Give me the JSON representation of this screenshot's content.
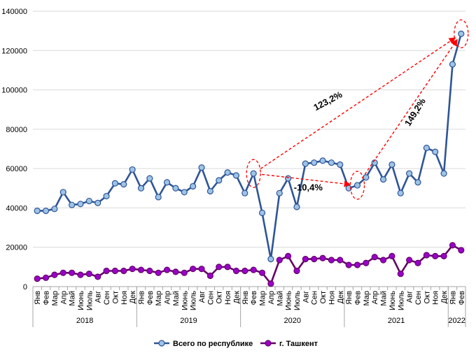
{
  "chart_data": {
    "type": "line",
    "months": [
      "Янв",
      "Фев",
      "Мар",
      "Апр",
      "Май",
      "Июнь",
      "Июль",
      "Авг",
      "Сен",
      "Окт",
      "Ноя",
      "Дек"
    ],
    "years": [
      {
        "label": "2018",
        "months": 12
      },
      {
        "label": "2019",
        "months": 12
      },
      {
        "label": "2020",
        "months": 12
      },
      {
        "label": "2021",
        "months": 12
      },
      {
        "label": "2022",
        "months": 2
      }
    ],
    "ylim": [
      0,
      140000
    ],
    "yticks": [
      0,
      20000,
      40000,
      60000,
      80000,
      100000,
      120000,
      140000
    ],
    "grid": true,
    "legend_position": "bottom",
    "series": [
      {
        "name": "Всего по республике",
        "color": "#2F5597",
        "marker_fill": "#9DC3E6",
        "values": [
          38500,
          38500,
          39500,
          48000,
          41500,
          42000,
          43500,
          42500,
          46000,
          52500,
          52000,
          59500,
          50000,
          55000,
          45500,
          53000,
          50000,
          48000,
          51000,
          60500,
          48500,
          54000,
          58000,
          56500,
          47500,
          57500,
          37500,
          14000,
          47500,
          55000,
          40500,
          62500,
          63000,
          64000,
          63000,
          62000,
          50000,
          51500,
          55500,
          63000,
          54500,
          62000,
          47500,
          57500,
          53000,
          70500,
          68500,
          57500,
          113000,
          128500
        ]
      },
      {
        "name": "г. Ташкент",
        "color": "#660066",
        "marker_fill": "#9900CC",
        "values": [
          4000,
          4500,
          6000,
          7000,
          7000,
          6000,
          6500,
          5000,
          8000,
          8000,
          8000,
          9000,
          8500,
          8000,
          7000,
          8500,
          7500,
          7000,
          9000,
          9000,
          5500,
          10000,
          10000,
          8000,
          8000,
          8500,
          7000,
          1500,
          13500,
          15500,
          8000,
          14000,
          14000,
          14500,
          13500,
          13500,
          11000,
          11000,
          12000,
          15000,
          13500,
          15500,
          6500,
          13500,
          12000,
          16000,
          15500,
          15500,
          21000,
          18500
        ]
      }
    ],
    "annotations": [
      {
        "text": "123,2%",
        "from_index": 25,
        "to_index": 49
      },
      {
        "text": "149,2%",
        "from_index": 37,
        "to_index": 49
      },
      {
        "text": "-10,4%",
        "from_index": 25,
        "to_index": 37
      }
    ]
  }
}
